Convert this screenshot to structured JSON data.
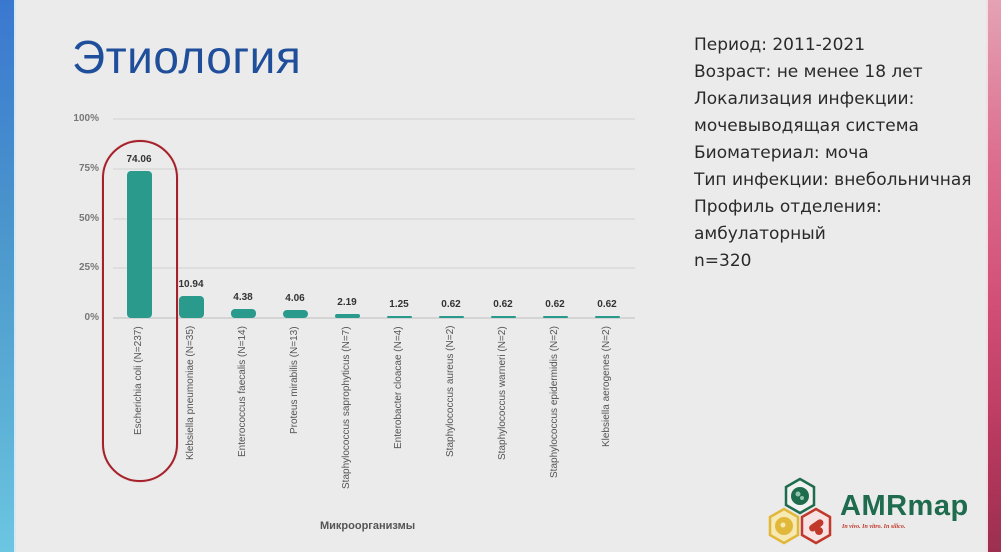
{
  "slide": {
    "title": "Этиология",
    "colors": {
      "title": "#1f4e9a",
      "background": "#ebebeb",
      "bar": "#2a9a8c",
      "highlight": "#a4202a",
      "left_accent": "#3a78d0",
      "right_accent": "#d24f77"
    }
  },
  "info": {
    "lines": [
      "Период: 2011-2021",
      "Возраст: не менее 18 лет",
      "Локализация инфекции:",
      "мочевыводящая система",
      "Биоматериал: моча",
      "Тип инфекции: внебольничная",
      "Профиль отделения:",
      "амбулаторный",
      "n=320"
    ]
  },
  "chart_data": {
    "type": "bar",
    "title": "",
    "xlabel": "Микроорганизмы",
    "ylabel": "",
    "ylim": [
      0,
      100
    ],
    "yticks": [
      "100%",
      "75%",
      "50%",
      "25%",
      "0%"
    ],
    "grid": true,
    "legend": null,
    "categories": [
      "Escherichia coli (N=237)",
      "Klebsiella pneumoniae (N=35)",
      "Enterococcus faecalis (N=14)",
      "Proteus mirabilis (N=13)",
      "Staphylococcus saprophyticus (N=7)",
      "Enterobacter cloacae (N=4)",
      "Staphylococcus aureus (N=2)",
      "Staphylococcus warneri (N=2)",
      "Staphylococcus epidermidis (N=2)",
      "Klebsiella aerogenes (N=2)"
    ],
    "values": [
      74.06,
      10.94,
      4.38,
      4.06,
      2.19,
      1.25,
      0.62,
      0.62,
      0.62,
      0.62
    ],
    "value_labels": [
      "74.06",
      "10.94",
      "4.38",
      "4.06",
      "2.19",
      "1.25",
      "0.62",
      "0.62",
      "0.62",
      "0.62"
    ],
    "annotations": [
      "Red rounded outline highlighting Escherichia coli (N=237)"
    ]
  },
  "logo": {
    "name": "AMRmap",
    "tagline": "In vivo. In vitro. In silico."
  }
}
